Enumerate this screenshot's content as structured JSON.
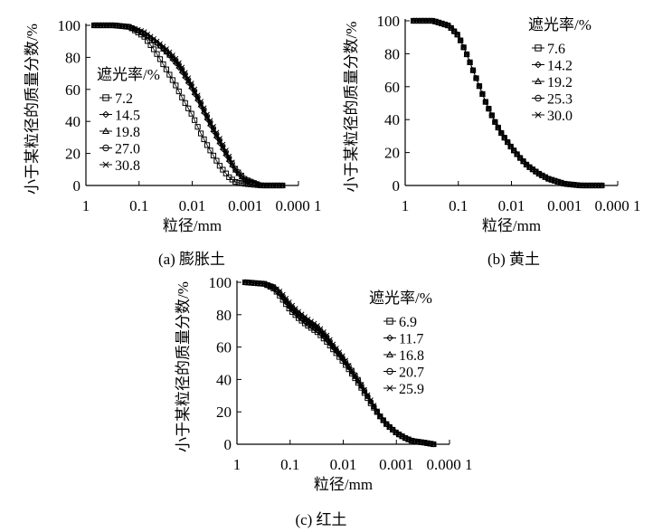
{
  "chart_data": [
    {
      "type": "line",
      "caption": "(a) 膨胀土",
      "xlabel": "粒径/mm",
      "ylabel": "小于某粒径的质量分数/%",
      "x_scale": "log",
      "x_reversed": true,
      "xlim": [
        1,
        0.0001
      ],
      "ylim": [
        0,
        100
      ],
      "x_tick_labels": [
        "1",
        "0.1",
        "0.01",
        "0.001",
        "0.000 1"
      ],
      "x_tick_values": [
        1,
        0.1,
        0.01,
        0.001,
        0.0001
      ],
      "y_tick_labels": [
        "0",
        "20",
        "40",
        "60",
        "80",
        "100"
      ],
      "y_tick_values": [
        0,
        20,
        40,
        60,
        80,
        100
      ],
      "legend_title": "遮光率/%",
      "legend_position": "center-left",
      "series": [
        {
          "name": "7.2",
          "marker": "square",
          "x": [
            0.7,
            0.3,
            0.15,
            0.08,
            0.05,
            0.03,
            0.02,
            0.015,
            0.01,
            0.007,
            0.005,
            0.003,
            0.002,
            0.0015,
            0.001,
            0.0005,
            0.0002
          ],
          "y": [
            100,
            100,
            99,
            93,
            84,
            72,
            62,
            54,
            44,
            33,
            24,
            12,
            5,
            2,
            1,
            0,
            0
          ]
        },
        {
          "name": "14.5",
          "marker": "diamond",
          "x": [
            0.7,
            0.3,
            0.15,
            0.08,
            0.05,
            0.03,
            0.02,
            0.015,
            0.01,
            0.007,
            0.005,
            0.003,
            0.002,
            0.0015,
            0.001,
            0.0005,
            0.0002
          ],
          "y": [
            100,
            100,
            99,
            95,
            90,
            83,
            76,
            70,
            60,
            50,
            40,
            26,
            15,
            9,
            3,
            0,
            0
          ]
        },
        {
          "name": "19.8",
          "marker": "triangle",
          "x": [
            0.7,
            0.3,
            0.15,
            0.08,
            0.05,
            0.03,
            0.02,
            0.015,
            0.01,
            0.007,
            0.005,
            0.003,
            0.002,
            0.0015,
            0.001,
            0.0005,
            0.0002
          ],
          "y": [
            100,
            100,
            99,
            95,
            90,
            83,
            77,
            71,
            61,
            51,
            41,
            27,
            16,
            9,
            3,
            0,
            0
          ]
        },
        {
          "name": "27.0",
          "marker": "circle",
          "x": [
            0.7,
            0.3,
            0.15,
            0.08,
            0.05,
            0.03,
            0.02,
            0.015,
            0.01,
            0.007,
            0.005,
            0.003,
            0.002,
            0.0015,
            0.001,
            0.0005,
            0.0002
          ],
          "y": [
            100,
            100,
            99,
            95,
            90,
            84,
            78,
            72,
            62,
            52,
            42,
            28,
            17,
            10,
            4,
            0,
            0
          ]
        },
        {
          "name": "30.8",
          "marker": "x",
          "x": [
            0.7,
            0.3,
            0.15,
            0.08,
            0.05,
            0.03,
            0.02,
            0.015,
            0.01,
            0.007,
            0.005,
            0.003,
            0.002,
            0.0015,
            0.001,
            0.0005,
            0.0002
          ],
          "y": [
            100,
            100,
            99,
            96,
            91,
            85,
            79,
            73,
            63,
            53,
            43,
            29,
            18,
            10,
            4,
            0,
            0
          ]
        }
      ]
    },
    {
      "type": "line",
      "caption": "(b) 黄土",
      "xlabel": "粒径/mm",
      "ylabel": "小于某粒径的质量分数/%",
      "x_scale": "log",
      "x_reversed": true,
      "xlim": [
        1,
        0.0001
      ],
      "ylim": [
        0,
        100
      ],
      "x_tick_labels": [
        "1",
        "0.1",
        "0.01",
        "0.001",
        "0.000 1"
      ],
      "x_tick_values": [
        1,
        0.1,
        0.01,
        0.001,
        0.0001
      ],
      "y_tick_labels": [
        "0",
        "20",
        "40",
        "60",
        "80",
        "100"
      ],
      "y_tick_values": [
        0,
        20,
        40,
        60,
        80,
        100
      ],
      "legend_title": "遮光率/%",
      "legend_position": "top-right",
      "series": [
        {
          "name": "7.6",
          "marker": "square",
          "x": [
            0.7,
            0.3,
            0.15,
            0.1,
            0.07,
            0.05,
            0.03,
            0.02,
            0.015,
            0.01,
            0.007,
            0.005,
            0.003,
            0.002,
            0.001,
            0.0005,
            0.0002
          ],
          "y": [
            100,
            100,
            97,
            91,
            80,
            68,
            50,
            38,
            31,
            23,
            17,
            12,
            7,
            4,
            1,
            0,
            0
          ]
        },
        {
          "name": "14.2",
          "marker": "diamond",
          "x": [
            0.7,
            0.3,
            0.15,
            0.1,
            0.07,
            0.05,
            0.03,
            0.02,
            0.015,
            0.01,
            0.007,
            0.005,
            0.003,
            0.002,
            0.001,
            0.0005,
            0.0002
          ],
          "y": [
            100,
            100,
            97,
            91,
            80,
            68,
            50,
            38,
            31,
            23,
            17,
            12,
            7,
            4,
            1,
            0,
            0
          ]
        },
        {
          "name": "19.2",
          "marker": "triangle",
          "x": [
            0.7,
            0.3,
            0.15,
            0.1,
            0.07,
            0.05,
            0.03,
            0.02,
            0.015,
            0.01,
            0.007,
            0.005,
            0.003,
            0.002,
            0.001,
            0.0005,
            0.0002
          ],
          "y": [
            100,
            100,
            97,
            91,
            80,
            68,
            50,
            38,
            31,
            23,
            17,
            12,
            7,
            4,
            1,
            0,
            0
          ]
        },
        {
          "name": "25.3",
          "marker": "circle",
          "x": [
            0.7,
            0.3,
            0.15,
            0.1,
            0.07,
            0.05,
            0.03,
            0.02,
            0.015,
            0.01,
            0.007,
            0.005,
            0.003,
            0.002,
            0.001,
            0.0005,
            0.0002
          ],
          "y": [
            100,
            100,
            97,
            91,
            80,
            68,
            50,
            38,
            31,
            23,
            17,
            12,
            7,
            4,
            1,
            0,
            0
          ]
        },
        {
          "name": "30.0",
          "marker": "x",
          "x": [
            0.7,
            0.3,
            0.15,
            0.1,
            0.07,
            0.05,
            0.03,
            0.02,
            0.015,
            0.01,
            0.007,
            0.005,
            0.003,
            0.002,
            0.001,
            0.0005,
            0.0002
          ],
          "y": [
            100,
            100,
            97,
            91,
            80,
            68,
            50,
            38,
            31,
            23,
            17,
            12,
            7,
            4,
            1,
            0,
            0
          ]
        }
      ]
    },
    {
      "type": "line",
      "caption": "(c) 红土",
      "xlabel": "粒径/mm",
      "ylabel": "小于某粒径的质量分数/%",
      "x_scale": "log",
      "x_reversed": true,
      "xlim": [
        1,
        0.0001
      ],
      "ylim": [
        0,
        100
      ],
      "x_tick_labels": [
        "1",
        "0.1",
        "0.01",
        "0.001",
        "0.000 1"
      ],
      "x_tick_values": [
        1,
        0.1,
        0.01,
        0.001,
        0.0001
      ],
      "y_tick_labels": [
        "0",
        "20",
        "40",
        "60",
        "80",
        "100"
      ],
      "y_tick_values": [
        0,
        20,
        40,
        60,
        80,
        100
      ],
      "legend_title": "遮光率/%",
      "legend_position": "right",
      "series": [
        {
          "name": "6.9",
          "marker": "square",
          "x": [
            0.7,
            0.3,
            0.2,
            0.15,
            0.1,
            0.07,
            0.05,
            0.03,
            0.02,
            0.015,
            0.01,
            0.007,
            0.005,
            0.003,
            0.002,
            0.0015,
            0.001,
            0.0007,
            0.0005,
            0.0003,
            0.0002
          ],
          "y": [
            100,
            99,
            96,
            91,
            83,
            78,
            74,
            69,
            63,
            58,
            51,
            44,
            37,
            25,
            17,
            12,
            7,
            4,
            2,
            1,
            0
          ]
        },
        {
          "name": "11.7",
          "marker": "diamond",
          "x": [
            0.7,
            0.3,
            0.2,
            0.15,
            0.1,
            0.07,
            0.05,
            0.03,
            0.02,
            0.015,
            0.01,
            0.007,
            0.005,
            0.003,
            0.002,
            0.0015,
            0.001,
            0.0007,
            0.0005,
            0.0003,
            0.0002
          ],
          "y": [
            100,
            99,
            96,
            92,
            84,
            79,
            75,
            70,
            64,
            59,
            52,
            45,
            38,
            26,
            17,
            12,
            7,
            4,
            2,
            1,
            0
          ]
        },
        {
          "name": "16.8",
          "marker": "triangle",
          "x": [
            0.7,
            0.3,
            0.2,
            0.15,
            0.1,
            0.07,
            0.05,
            0.03,
            0.02,
            0.015,
            0.01,
            0.007,
            0.005,
            0.003,
            0.002,
            0.0015,
            0.001,
            0.0007,
            0.0005,
            0.0003,
            0.0002
          ],
          "y": [
            100,
            99,
            97,
            93,
            85,
            80,
            76,
            71,
            65,
            60,
            53,
            45,
            38,
            26,
            17,
            12,
            7,
            4,
            2,
            1,
            0
          ]
        },
        {
          "name": "20.7",
          "marker": "circle",
          "x": [
            0.7,
            0.3,
            0.2,
            0.15,
            0.1,
            0.07,
            0.05,
            0.03,
            0.02,
            0.015,
            0.01,
            0.007,
            0.005,
            0.003,
            0.002,
            0.0015,
            0.001,
            0.0007,
            0.0005,
            0.0003,
            0.0002
          ],
          "y": [
            100,
            99,
            97,
            93,
            86,
            81,
            77,
            72,
            66,
            60,
            53,
            46,
            39,
            26,
            17,
            12,
            7,
            4,
            2,
            1,
            0
          ]
        },
        {
          "name": "25.9",
          "marker": "x",
          "x": [
            0.7,
            0.3,
            0.2,
            0.15,
            0.1,
            0.07,
            0.05,
            0.03,
            0.02,
            0.015,
            0.01,
            0.007,
            0.005,
            0.003,
            0.002,
            0.0015,
            0.001,
            0.0007,
            0.0005,
            0.0003,
            0.0002
          ],
          "y": [
            100,
            99,
            97,
            94,
            87,
            82,
            78,
            73,
            67,
            61,
            54,
            46,
            39,
            27,
            17,
            12,
            7,
            4,
            2,
            1,
            0
          ]
        }
      ]
    }
  ]
}
